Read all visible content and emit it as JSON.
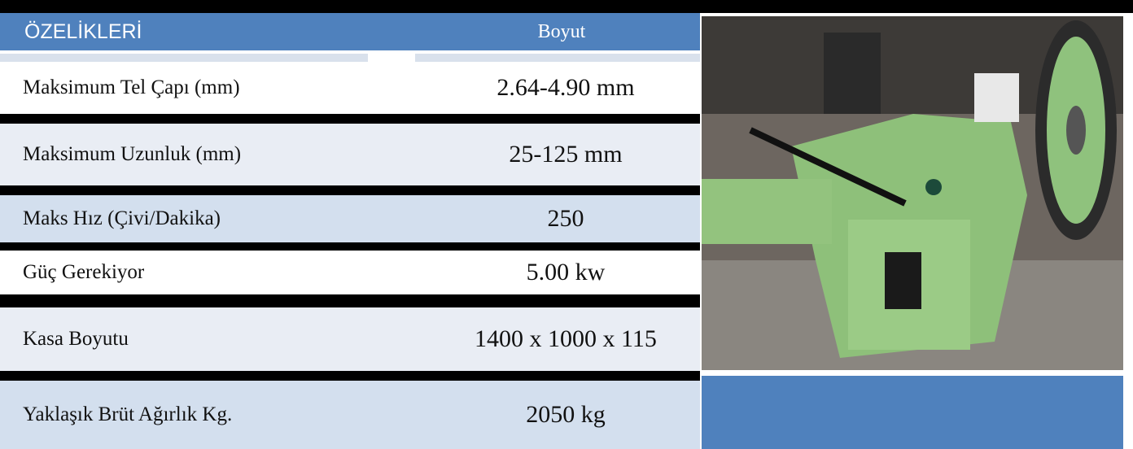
{
  "header": {
    "columns": [
      "ÖZELİKLERİ",
      "Boyut"
    ]
  },
  "table": {
    "rows": [
      [
        "Maksimum Tel Çapı (mm)",
        "2.64-4.90 mm"
      ],
      [
        "Maksimum Uzunluk (mm)",
        "25-125 mm"
      ],
      [
        "Maks Hız (Çivi/Dakika)",
        "250"
      ],
      [
        "Güç Gerekiyor",
        "5.00 kw"
      ],
      [
        "Kasa Boyutu",
        "1400 x 1000 x 115"
      ],
      [
        "Yaklaşık Brüt Ağırlık Kg.",
        "2050 kg"
      ]
    ]
  }
}
